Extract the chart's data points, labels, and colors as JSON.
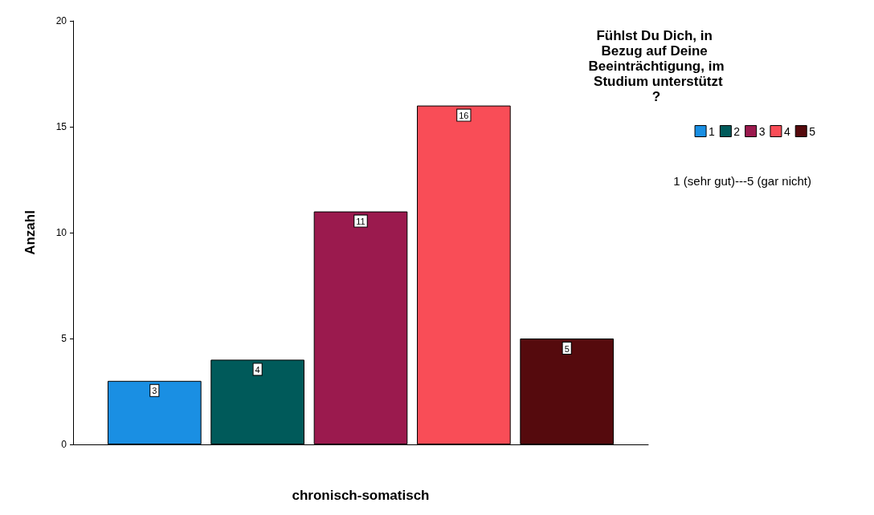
{
  "chart_data": {
    "type": "bar",
    "categories": [
      null
    ],
    "xlabel": "chronisch-somatisch",
    "ylabel": "Anzahl",
    "legend_title": "Fühlst Du Dich, in Bezug auf Deine Beeinträchtigung, im Studium unterstützt?",
    "annotations": [
      "1 (sehr gut)---5 (gar nicht)"
    ],
    "series": [
      {
        "name": "1",
        "color": "#1a8fe3",
        "values": [
          3
        ]
      },
      {
        "name": "2",
        "color": "#005a5a",
        "values": [
          4
        ]
      },
      {
        "name": "3",
        "color": "#9b1a4e",
        "values": [
          11
        ]
      },
      {
        "name": "4",
        "color": "#f94d57",
        "values": [
          16
        ]
      },
      {
        "name": "5",
        "color": "#550a0d",
        "values": [
          5
        ]
      }
    ],
    "ylim": [
      0,
      20
    ],
    "yticks": [
      0,
      5,
      10,
      15,
      20
    ],
    "grid": false,
    "legend": "top right",
    "data_labels": true
  }
}
